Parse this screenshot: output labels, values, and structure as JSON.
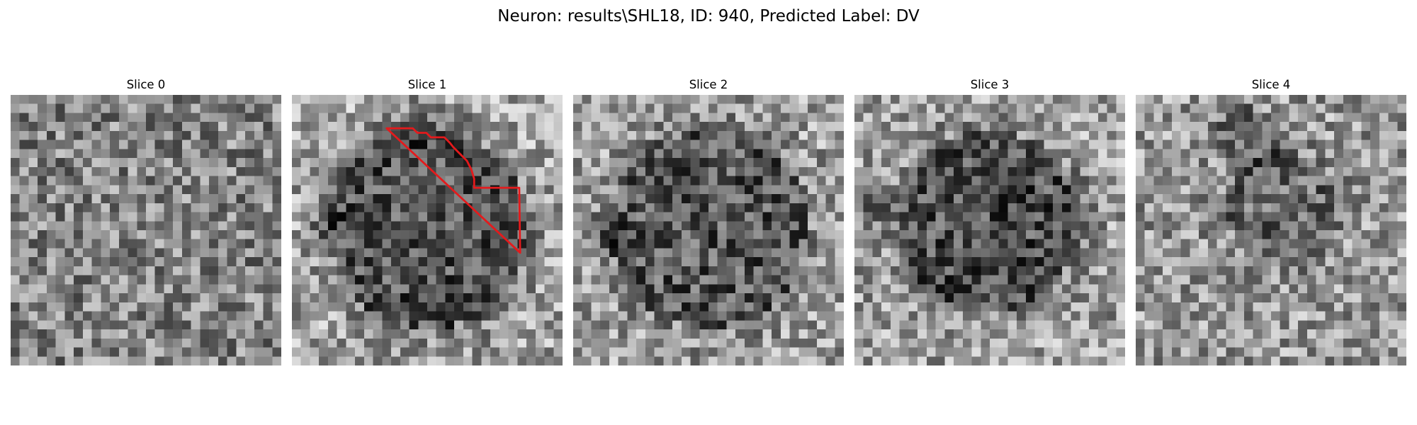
{
  "suptitle": "Neuron: results\\SHL18, ID: 940, Predicted Label: DV",
  "chart_data": {
    "type": "heatmap",
    "colormap": "gray",
    "grid_size": 30,
    "axes_visible": false,
    "outline_color": "#e41a1c",
    "panels": [
      {
        "title": "Slice 0",
        "roi_polygon": []
      },
      {
        "title": "Slice 1",
        "roi_polygon": [
          [
            10.5,
            3.7
          ],
          [
            13.4,
            3.7
          ],
          [
            13.9,
            4.2
          ],
          [
            14.9,
            4.2
          ],
          [
            15.4,
            4.7
          ],
          [
            16.9,
            4.7
          ],
          [
            17.5,
            5.3
          ],
          [
            17.9,
            5.8
          ],
          [
            18.4,
            6.3
          ],
          [
            18.9,
            6.8
          ],
          [
            19.4,
            7.3
          ],
          [
            19.9,
            8.3
          ],
          [
            20.2,
            9.3
          ],
          [
            20.2,
            10.3
          ],
          [
            25.2,
            10.3
          ],
          [
            25.3,
            17.5
          ]
        ]
      },
      {
        "title": "Slice 2",
        "roi_polygon": []
      },
      {
        "title": "Slice 3",
        "roi_polygon": []
      },
      {
        "title": "Slice 4",
        "roi_polygon": []
      }
    ]
  }
}
